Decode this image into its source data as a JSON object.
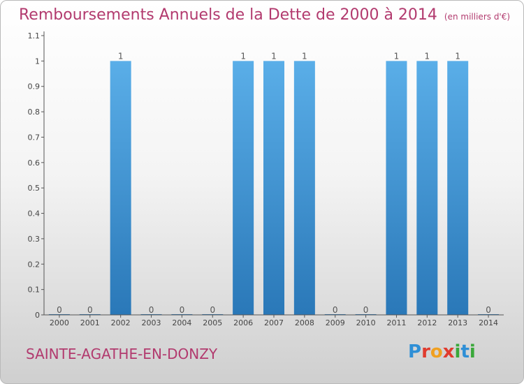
{
  "header": {
    "title": "Remboursements Annuels de la Dette de 2000 à 2014",
    "unit": "(en milliers d'€)"
  },
  "footer": {
    "place": "SAINTE-AGATHE-EN-DONZY",
    "logo": [
      "P",
      "r",
      "o",
      "x",
      "i",
      "t",
      "i"
    ]
  },
  "colors": {
    "title": "#b23a6e",
    "bar_top": "#5aaee8",
    "bar_bottom": "#2a78b8",
    "axis": "#555555"
  },
  "chart_data": {
    "type": "bar",
    "categories": [
      "2000",
      "2001",
      "2002",
      "2003",
      "2004",
      "2005",
      "2006",
      "2007",
      "2008",
      "2009",
      "2010",
      "2011",
      "2012",
      "2013",
      "2014"
    ],
    "values": [
      0,
      0,
      1,
      0,
      0,
      0,
      1,
      1,
      1,
      0,
      0,
      1,
      1,
      1,
      0
    ],
    "data_labels": [
      "0",
      "0",
      "1",
      "0",
      "0",
      "0",
      "1",
      "1",
      "1",
      "0",
      "0",
      "1",
      "1",
      "1",
      "0"
    ],
    "ylim": [
      0,
      1.1
    ],
    "yticks": [
      0,
      0.1,
      0.2,
      0.3,
      0.4,
      0.5,
      0.6,
      0.7,
      0.8,
      0.9,
      1,
      1.1
    ],
    "ytick_labels": [
      "0",
      "0.1",
      "0.2",
      "0.3",
      "0.4",
      "0.5",
      "0.6",
      "0.7",
      "0.8",
      "0.9",
      "1",
      "1.1"
    ],
    "grid": false,
    "legend": "none"
  }
}
